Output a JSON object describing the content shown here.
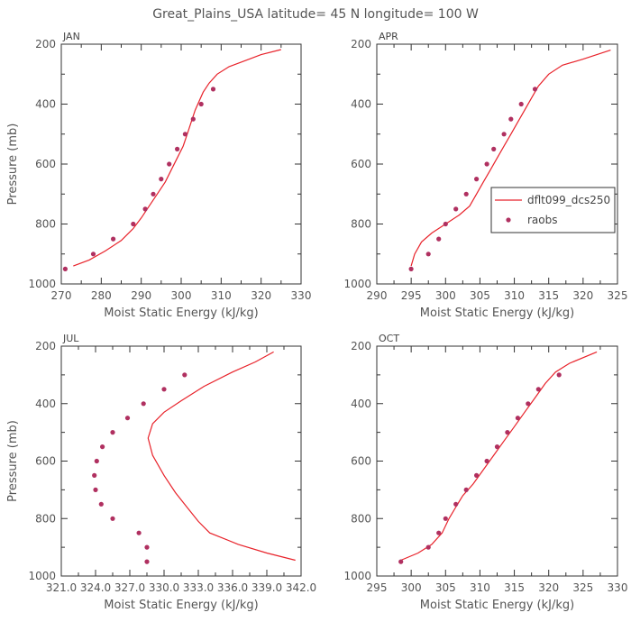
{
  "title": "Great_Plains_USA   latitude= 45 N longitude= 100 W",
  "colors": {
    "model": "#e8222a",
    "obs": "#b03060"
  },
  "legend": {
    "placement": "right",
    "entries": [
      "dflt099_dcs250",
      "raobs"
    ]
  },
  "chart_data": [
    {
      "type": "line",
      "panel": "JAN",
      "xlabel": "Moist Static Energy (kJ/kg)",
      "ylabel": "Pressure (mb)",
      "xlim": [
        270,
        330
      ],
      "ylim": [
        1000,
        200
      ],
      "xticks": [
        "270",
        "280",
        "290",
        "300",
        "310",
        "320",
        "330"
      ],
      "yticks": [
        "200",
        "400",
        "600",
        "800",
        "1000"
      ],
      "series": [
        {
          "name": "dflt099_dcs250",
          "style": "line",
          "points": [
            [
              273,
              940
            ],
            [
              277,
              920
            ],
            [
              281,
              890
            ],
            [
              285,
              855
            ],
            [
              288,
              815
            ],
            [
              290,
              780
            ],
            [
              292,
              740
            ],
            [
              294,
              700
            ],
            [
              296,
              660
            ],
            [
              297.5,
              620
            ],
            [
              299,
              580
            ],
            [
              300.5,
              540
            ],
            [
              301.5,
              500
            ],
            [
              302.5,
              460
            ],
            [
              303.5,
              420
            ],
            [
              304.5,
              390
            ],
            [
              305.5,
              360
            ],
            [
              307,
              330
            ],
            [
              309,
              300
            ],
            [
              312,
              275
            ],
            [
              316,
              255
            ],
            [
              320,
              235
            ],
            [
              325,
              218
            ]
          ]
        },
        {
          "name": "raobs",
          "style": "markers",
          "points": [
            [
              271,
              950
            ],
            [
              278,
              900
            ],
            [
              283,
              850
            ],
            [
              288,
              800
            ],
            [
              291,
              750
            ],
            [
              293,
              700
            ],
            [
              295,
              650
            ],
            [
              297,
              600
            ],
            [
              299,
              550
            ],
            [
              301,
              500
            ],
            [
              303,
              450
            ],
            [
              305,
              400
            ],
            [
              308,
              350
            ]
          ]
        }
      ]
    },
    {
      "type": "line",
      "panel": "APR",
      "xlabel": "Moist Static Energy (kJ/kg)",
      "ylabel": "",
      "xlim": [
        290,
        325
      ],
      "ylim": [
        1000,
        200
      ],
      "xticks": [
        "290",
        "295",
        "300",
        "305",
        "310",
        "315",
        "320",
        "325"
      ],
      "yticks": [
        "200",
        "400",
        "600",
        "800",
        "1000"
      ],
      "series": [
        {
          "name": "dflt099_dcs250",
          "style": "line",
          "points": [
            [
              295,
              940
            ],
            [
              295.5,
              900
            ],
            [
              296.5,
              860
            ],
            [
              298,
              830
            ],
            [
              300,
              800
            ],
            [
              302,
              770
            ],
            [
              303.5,
              740
            ],
            [
              304.5,
              700
            ],
            [
              305.5,
              660
            ],
            [
              306.5,
              620
            ],
            [
              307.5,
              580
            ],
            [
              308.5,
              540
            ],
            [
              309.5,
              500
            ],
            [
              310.5,
              460
            ],
            [
              311.5,
              420
            ],
            [
              312.5,
              380
            ],
            [
              313.5,
              340
            ],
            [
              315,
              300
            ],
            [
              317,
              270
            ],
            [
              320,
              250
            ],
            [
              324,
              220
            ]
          ]
        },
        {
          "name": "raobs",
          "style": "markers",
          "points": [
            [
              295,
              950
            ],
            [
              297.5,
              900
            ],
            [
              299,
              850
            ],
            [
              300,
              800
            ],
            [
              301.5,
              750
            ],
            [
              303,
              700
            ],
            [
              304.5,
              650
            ],
            [
              306,
              600
            ],
            [
              307,
              550
            ],
            [
              308.5,
              500
            ],
            [
              309.5,
              450
            ],
            [
              311,
              400
            ],
            [
              313,
              350
            ]
          ]
        }
      ]
    },
    {
      "type": "line",
      "panel": "JUL",
      "xlabel": "Moist Static Energy (kJ/kg)",
      "ylabel": "Pressure (mb)",
      "xlim": [
        321.0,
        342.0
      ],
      "ylim": [
        1000,
        200
      ],
      "xticks": [
        "321.0",
        "324.0",
        "327.0",
        "330.0",
        "333.0",
        "336.0",
        "339.0",
        "342.0"
      ],
      "yticks": [
        "200",
        "400",
        "600",
        "800",
        "1000"
      ],
      "series": [
        {
          "name": "dflt099_dcs250",
          "style": "line",
          "points": [
            [
              341.5,
              945
            ],
            [
              339,
              920
            ],
            [
              336.5,
              890
            ],
            [
              334,
              850
            ],
            [
              333,
              810
            ],
            [
              332,
              760
            ],
            [
              331,
              710
            ],
            [
              330,
              650
            ],
            [
              329,
              580
            ],
            [
              328.6,
              520
            ],
            [
              329,
              470
            ],
            [
              330,
              430
            ],
            [
              331.5,
              390
            ],
            [
              333.5,
              340
            ],
            [
              336,
              290
            ],
            [
              338,
              255
            ],
            [
              339.6,
              220
            ]
          ]
        },
        {
          "name": "raobs",
          "style": "markers",
          "points": [
            [
              328.5,
              950
            ],
            [
              328.5,
              900
            ],
            [
              327.8,
              850
            ],
            [
              325.5,
              800
            ],
            [
              324.5,
              750
            ],
            [
              324,
              700
            ],
            [
              323.9,
              650
            ],
            [
              324.1,
              600
            ],
            [
              324.6,
              550
            ],
            [
              325.5,
              500
            ],
            [
              326.8,
              450
            ],
            [
              328.2,
              400
            ],
            [
              330,
              350
            ],
            [
              331.8,
              300
            ]
          ]
        }
      ]
    },
    {
      "type": "line",
      "panel": "OCT",
      "xlabel": "Moist Static Energy (kJ/kg)",
      "ylabel": "",
      "xlim": [
        295,
        330
      ],
      "ylim": [
        1000,
        200
      ],
      "xticks": [
        "295",
        "300",
        "305",
        "310",
        "315",
        "320",
        "325",
        "330"
      ],
      "yticks": [
        "200",
        "400",
        "600",
        "800",
        "1000"
      ],
      "series": [
        {
          "name": "dflt099_dcs250",
          "style": "line",
          "points": [
            [
              298.5,
              945
            ],
            [
              301,
              920
            ],
            [
              303,
              890
            ],
            [
              304.5,
              850
            ],
            [
              305.5,
              800
            ],
            [
              306.5,
              760
            ],
            [
              307.5,
              720
            ],
            [
              309,
              680
            ],
            [
              310.5,
              630
            ],
            [
              312,
              580
            ],
            [
              313.5,
              530
            ],
            [
              315,
              480
            ],
            [
              316.5,
              430
            ],
            [
              318,
              380
            ],
            [
              319.5,
              330
            ],
            [
              321,
              290
            ],
            [
              323,
              260
            ],
            [
              327,
              220
            ]
          ]
        },
        {
          "name": "raobs",
          "style": "markers",
          "points": [
            [
              298.5,
              950
            ],
            [
              302.5,
              900
            ],
            [
              304,
              850
            ],
            [
              305,
              800
            ],
            [
              306.5,
              750
            ],
            [
              308,
              700
            ],
            [
              309.5,
              650
            ],
            [
              311,
              600
            ],
            [
              312.5,
              550
            ],
            [
              314,
              500
            ],
            [
              315.5,
              450
            ],
            [
              317,
              400
            ],
            [
              318.5,
              350
            ],
            [
              321.5,
              300
            ]
          ]
        }
      ]
    }
  ]
}
